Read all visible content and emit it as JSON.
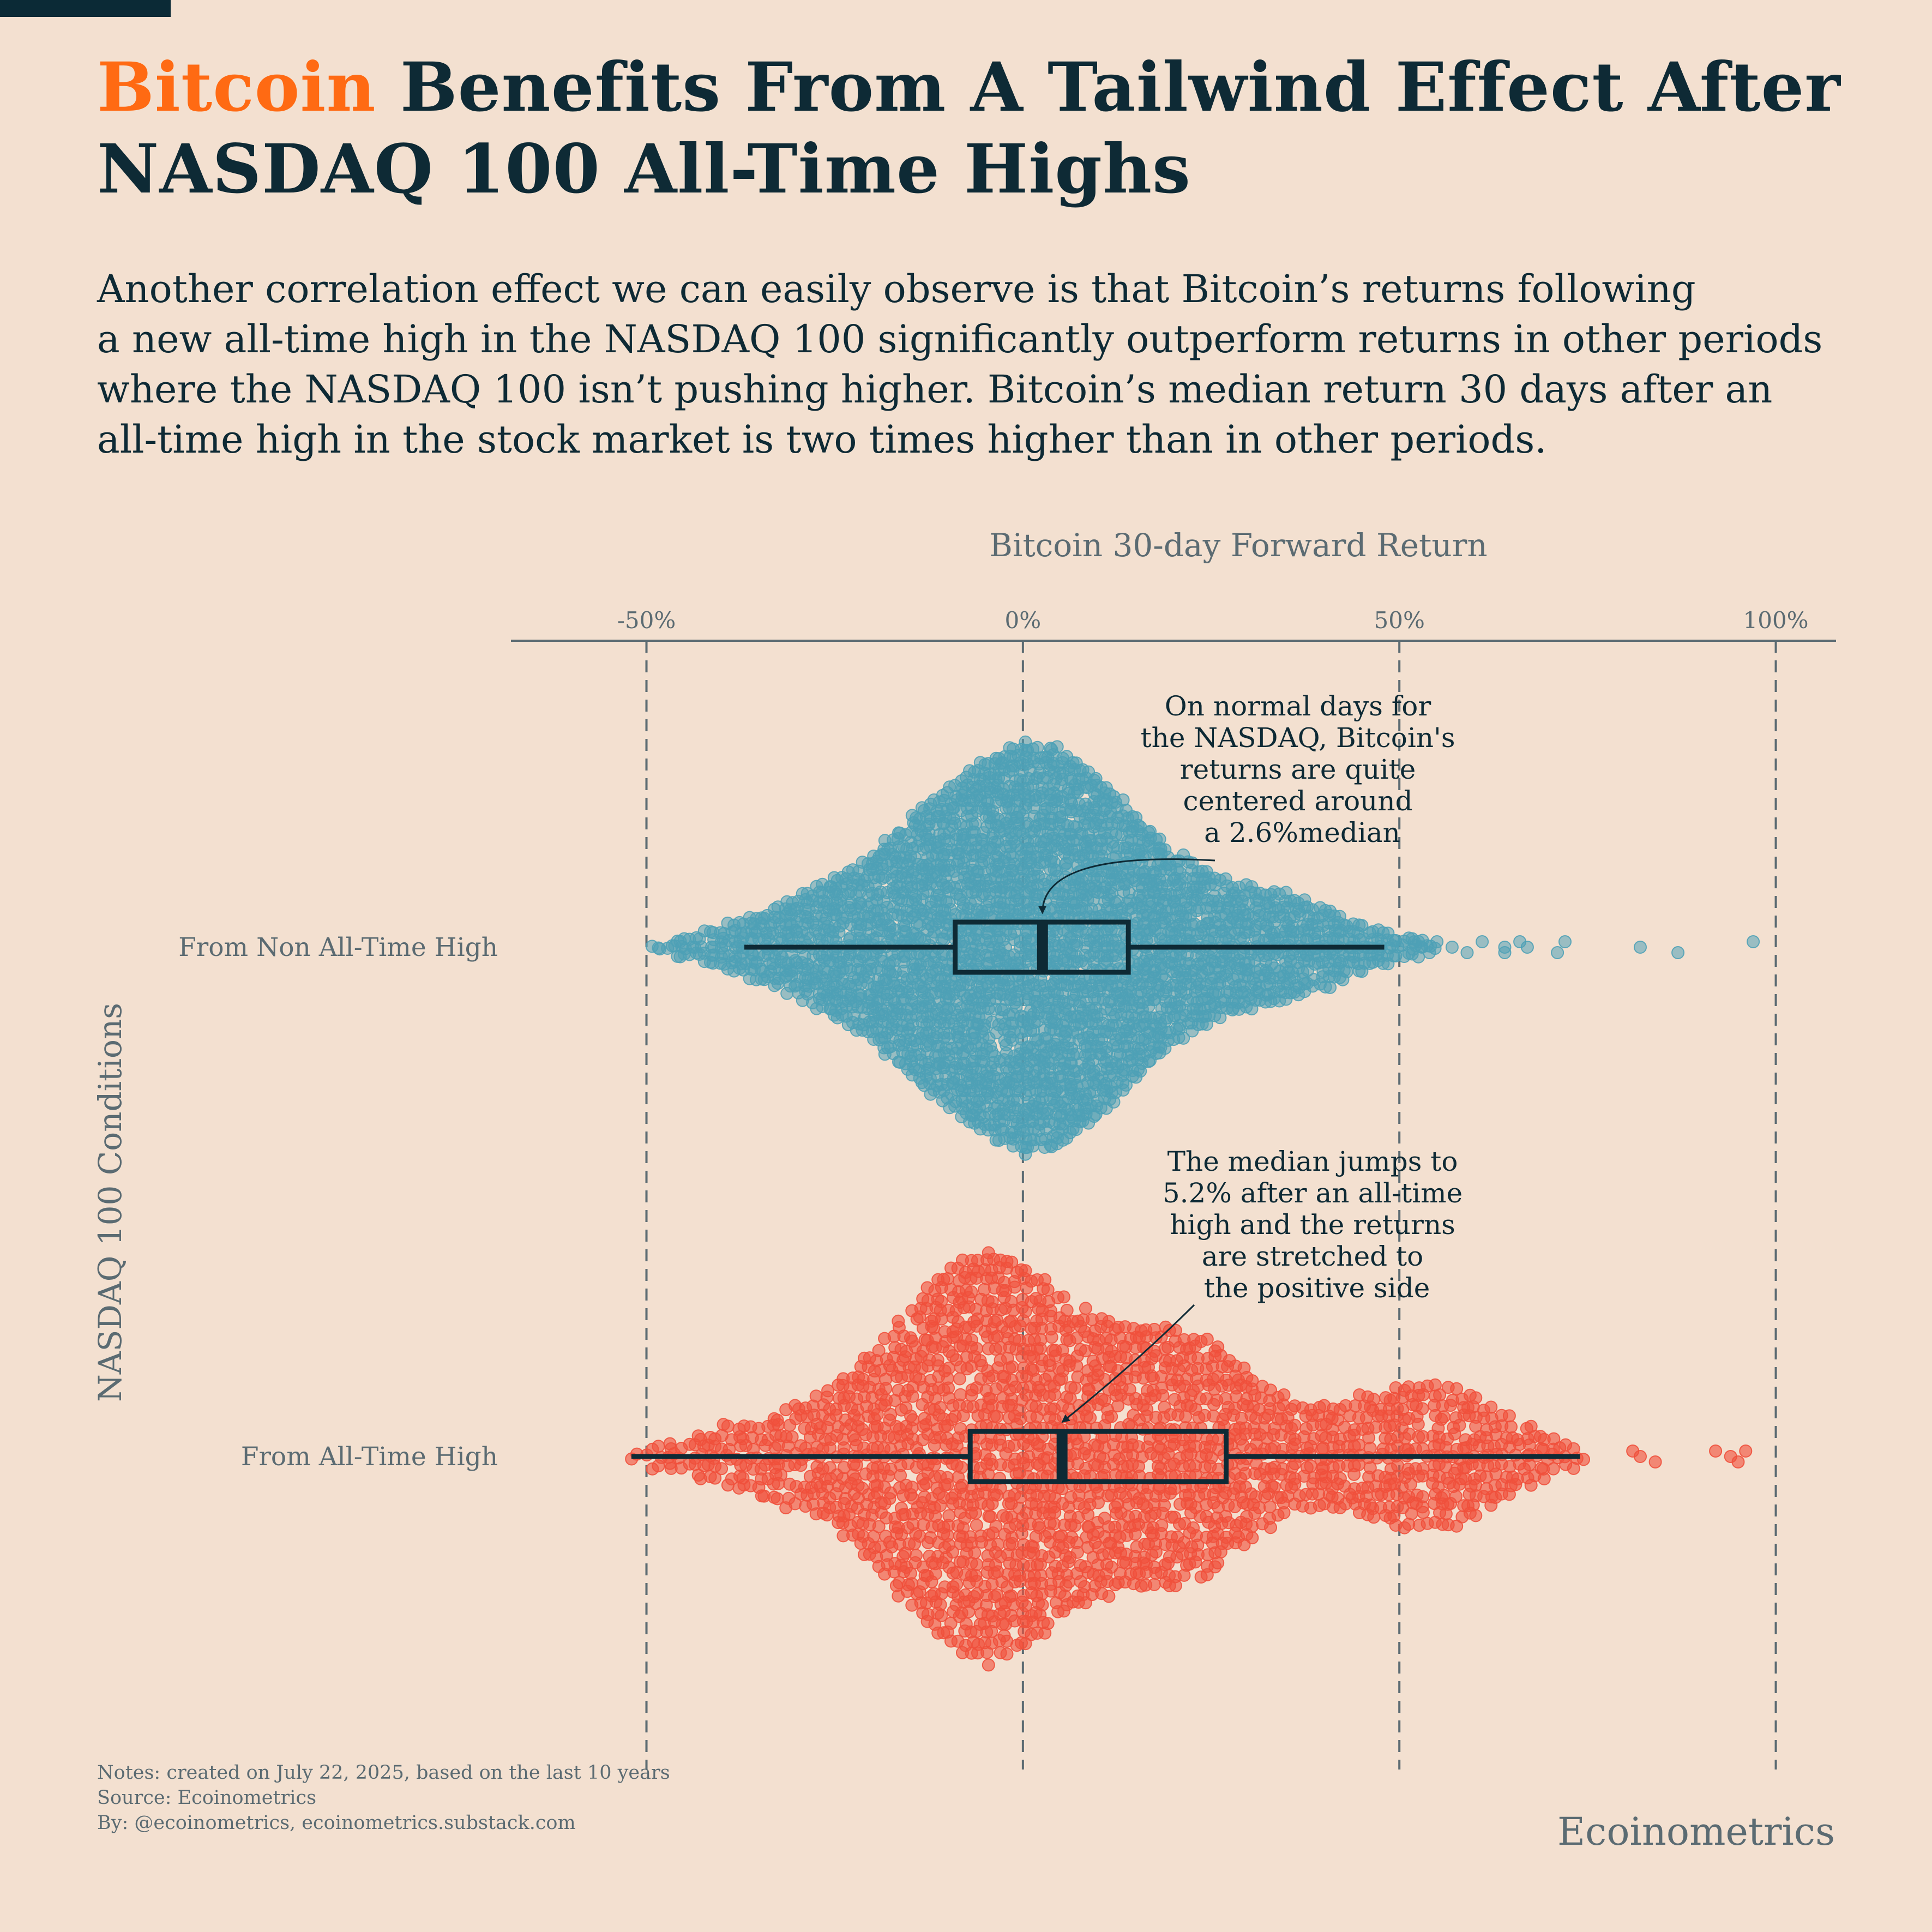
{
  "headline": {
    "accent": "Bitcoin",
    "rest_line1": " Benefits From A Tailwind Effect After",
    "line2": "NASDAQ 100 All-Time Highs"
  },
  "subtitle": {
    "lines": [
      "Another correlation effect we can easily observe is that Bitcoin’s returns following",
      "a new all-time high in the NASDAQ 100 significantly outperform returns in other periods",
      "where the NASDAQ 100 isn’t pushing higher. Bitcoin’s median return 30 days after an",
      "all-time high in the stock market is two times higher than in other periods."
    ]
  },
  "colors": {
    "background": "#f3e0d0",
    "dark": "#0e2a35",
    "accent": "#ff6a13",
    "non_ath_points": "#4ea1b6",
    "ath_points": "#f0503c",
    "muted": "#5b6b72"
  },
  "chart_data": {
    "type": "scatter",
    "subtype": "beeswarm-with-boxplot",
    "orientation": "horizontal",
    "title": "Bitcoin 30-day Forward Return",
    "xlabel": "Bitcoin 30-day Forward Return",
    "ylabel": "NASDAQ 100 Conditions",
    "xlim": [
      -68,
      108
    ],
    "x_ticks": [
      -50,
      0,
      50,
      100
    ],
    "x_tick_labels": [
      "-50%",
      "0%",
      "50%",
      "100%"
    ],
    "gridlines": "vertical dashed at ticks",
    "categories": [
      "From Non All-Time High",
      "From All-Time High"
    ],
    "series": [
      {
        "name": "From Non All-Time High",
        "color": "#4ea1b6",
        "approx_count": 2200,
        "box": {
          "whisker_low": -37,
          "q1": -9,
          "median": 2.6,
          "q3": 14,
          "whisker_high": 48
        },
        "density_profile": [
          [
            -50,
            1
          ],
          [
            -45,
            4
          ],
          [
            -40,
            9
          ],
          [
            -35,
            14
          ],
          [
            -30,
            21
          ],
          [
            -25,
            29
          ],
          [
            -20,
            39
          ],
          [
            -15,
            54
          ],
          [
            -10,
            67
          ],
          [
            -5,
            78
          ],
          [
            0,
            86
          ],
          [
            5,
            83
          ],
          [
            10,
            71
          ],
          [
            15,
            55
          ],
          [
            20,
            40
          ],
          [
            25,
            31
          ],
          [
            30,
            26
          ],
          [
            35,
            22
          ],
          [
            40,
            17
          ],
          [
            45,
            10
          ],
          [
            50,
            5
          ],
          [
            55,
            2
          ]
        ],
        "outliers": [
          52,
          53,
          54,
          55,
          57,
          59,
          61,
          64,
          64,
          66,
          67,
          71,
          72,
          82,
          87,
          97
        ]
      },
      {
        "name": "From All-Time High",
        "color": "#f0503c",
        "approx_count": 700,
        "box": {
          "whisker_low": -52,
          "q1": -7,
          "median": 5.2,
          "q3": 27,
          "whisker_high": 74
        },
        "density_profile": [
          [
            -52,
            1
          ],
          [
            -45,
            3
          ],
          [
            -40,
            5
          ],
          [
            -35,
            7
          ],
          [
            -30,
            9
          ],
          [
            -25,
            12
          ],
          [
            -20,
            18
          ],
          [
            -15,
            25
          ],
          [
            -10,
            32
          ],
          [
            -5,
            35
          ],
          [
            0,
            33
          ],
          [
            5,
            27
          ],
          [
            10,
            24
          ],
          [
            15,
            22
          ],
          [
            20,
            22
          ],
          [
            25,
            20
          ],
          [
            30,
            14
          ],
          [
            35,
            10
          ],
          [
            40,
            9
          ],
          [
            45,
            10
          ],
          [
            50,
            12
          ],
          [
            55,
            13
          ],
          [
            60,
            10
          ],
          [
            65,
            7
          ],
          [
            70,
            4
          ],
          [
            75,
            1
          ]
        ],
        "outliers": [
          81,
          82,
          84,
          92,
          94,
          95,
          96
        ]
      }
    ],
    "annotations": [
      {
        "series": "From Non All-Time High",
        "lines": [
          "On normal days for",
          "the NASDAQ, Bitcoin's",
          "returns are quite",
          "centered around",
          "a 2.6%median"
        ],
        "points_to": 2.6
      },
      {
        "series": "From All-Time High",
        "lines": [
          "The median jumps to",
          "5.2% after an all-time",
          "high and the returns",
          "are stretched to",
          "the positive side"
        ],
        "points_to": 5.2
      }
    ]
  },
  "footer": {
    "notes": "Notes: created on July 22, 2025, based on the last 10 years",
    "source": "Source: Ecoinometrics",
    "by": "By: @ecoinometrics, ecoinometrics.substack.com",
    "brand": "Ecoinometrics"
  }
}
